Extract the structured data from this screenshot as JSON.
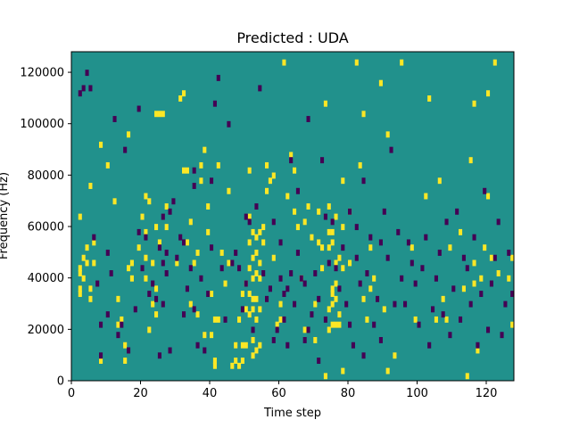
{
  "chart_data": {
    "type": "heatmap",
    "title": "Predicted : UDA",
    "xlabel": "Time step",
    "ylabel": "Frequency (Hz)",
    "xlim": [
      0,
      128
    ],
    "ylim": [
      0,
      128000
    ],
    "x_ticks": [
      0,
      20,
      40,
      60,
      80,
      100,
      120
    ],
    "y_ticks": [
      0,
      20000,
      40000,
      60000,
      80000,
      100000,
      120000
    ],
    "n_time_steps": 128,
    "n_freq_bins": 128,
    "colormap": "viridis",
    "value_levels": {
      "low": 0,
      "mid": 1,
      "high": 2
    },
    "colors": {
      "low": "#440154",
      "mid": "#21918c",
      "high": "#fde725"
    },
    "background_value": 1,
    "cells_high": [
      [
        2,
        36
      ],
      [
        2,
        34
      ],
      [
        2,
        44
      ],
      [
        2,
        42
      ],
      [
        2,
        64
      ],
      [
        3,
        48
      ],
      [
        3,
        40
      ],
      [
        4,
        52
      ],
      [
        4,
        46
      ],
      [
        5,
        36
      ],
      [
        5,
        76
      ],
      [
        5,
        32
      ],
      [
        6,
        54
      ],
      [
        6,
        46
      ],
      [
        8,
        92
      ],
      [
        8,
        8
      ],
      [
        10,
        84
      ],
      [
        12,
        70
      ],
      [
        13,
        22
      ],
      [
        13,
        32
      ],
      [
        14,
        24
      ],
      [
        15,
        8
      ],
      [
        15,
        14
      ],
      [
        16,
        44
      ],
      [
        16,
        96
      ],
      [
        17,
        46
      ],
      [
        17,
        40
      ],
      [
        19,
        52
      ],
      [
        20,
        64
      ],
      [
        21,
        72
      ],
      [
        21,
        58
      ],
      [
        21,
        40
      ],
      [
        21,
        48
      ],
      [
        22,
        20
      ],
      [
        22,
        70
      ],
      [
        23,
        30
      ],
      [
        23,
        46
      ],
      [
        24,
        26
      ],
      [
        24,
        36
      ],
      [
        24,
        60
      ],
      [
        24,
        104
      ],
      [
        25,
        104
      ],
      [
        25,
        54
      ],
      [
        26,
        104
      ],
      [
        27,
        60
      ],
      [
        27,
        68
      ],
      [
        30,
        46
      ],
      [
        31,
        110
      ],
      [
        32,
        112
      ],
      [
        32,
        82
      ],
      [
        33,
        82
      ],
      [
        33,
        54
      ],
      [
        34,
        30
      ],
      [
        34,
        62
      ],
      [
        35,
        46
      ],
      [
        36,
        26
      ],
      [
        36,
        50
      ],
      [
        37,
        78
      ],
      [
        37,
        84
      ],
      [
        38,
        90
      ],
      [
        38,
        18
      ],
      [
        39,
        68
      ],
      [
        39,
        58
      ],
      [
        40,
        18
      ],
      [
        40,
        34
      ],
      [
        41,
        8
      ],
      [
        41,
        24
      ],
      [
        41,
        6
      ],
      [
        42,
        24
      ],
      [
        42,
        84
      ],
      [
        43,
        50
      ],
      [
        44,
        38
      ],
      [
        45,
        46
      ],
      [
        45,
        74
      ],
      [
        46,
        6
      ],
      [
        47,
        8
      ],
      [
        47,
        14
      ],
      [
        48,
        6
      ],
      [
        48,
        24
      ],
      [
        49,
        8
      ],
      [
        49,
        14
      ],
      [
        49,
        34
      ],
      [
        50,
        38
      ],
      [
        50,
        14
      ],
      [
        50,
        28
      ],
      [
        51,
        54
      ],
      [
        51,
        44
      ],
      [
        51,
        26
      ],
      [
        51,
        82
      ],
      [
        51,
        64
      ],
      [
        51,
        34
      ],
      [
        52,
        58
      ],
      [
        52,
        48
      ],
      [
        52,
        40
      ],
      [
        52,
        10
      ],
      [
        52,
        32
      ],
      [
        52,
        28
      ],
      [
        52,
        16
      ],
      [
        53,
        56
      ],
      [
        53,
        50
      ],
      [
        53,
        42
      ],
      [
        53,
        32
      ],
      [
        53,
        24
      ],
      [
        53,
        12
      ],
      [
        54,
        58
      ],
      [
        54,
        46
      ],
      [
        54,
        40
      ],
      [
        54,
        14
      ],
      [
        54,
        28
      ],
      [
        55,
        60
      ],
      [
        55,
        54
      ],
      [
        56,
        74
      ],
      [
        56,
        84
      ],
      [
        57,
        78
      ],
      [
        58,
        80
      ],
      [
        58,
        48
      ],
      [
        59,
        22
      ],
      [
        60,
        24
      ],
      [
        60,
        30
      ],
      [
        61,
        124
      ],
      [
        62,
        72
      ],
      [
        63,
        88
      ],
      [
        64,
        82
      ],
      [
        64,
        66
      ],
      [
        65,
        60
      ],
      [
        66,
        40
      ],
      [
        67,
        62
      ],
      [
        67,
        20
      ],
      [
        68,
        68
      ],
      [
        69,
        56
      ],
      [
        70,
        30
      ],
      [
        70,
        16
      ],
      [
        71,
        54
      ],
      [
        71,
        66
      ],
      [
        72,
        44
      ],
      [
        72,
        52
      ],
      [
        73,
        108
      ],
      [
        73,
        2
      ],
      [
        74,
        52
      ],
      [
        74,
        20
      ],
      [
        74,
        58
      ],
      [
        74,
        28
      ],
      [
        74,
        68
      ],
      [
        75,
        54
      ],
      [
        75,
        36
      ],
      [
        75,
        34
      ],
      [
        75,
        30
      ],
      [
        75,
        22
      ],
      [
        75,
        58
      ],
      [
        76,
        64
      ],
      [
        76,
        46
      ],
      [
        76,
        38
      ],
      [
        76,
        32
      ],
      [
        76,
        22
      ],
      [
        77,
        48
      ],
      [
        77,
        26
      ],
      [
        77,
        22
      ],
      [
        78,
        78
      ],
      [
        78,
        60
      ],
      [
        78,
        44
      ],
      [
        78,
        4
      ],
      [
        80,
        46
      ],
      [
        80,
        66
      ],
      [
        82,
        124
      ],
      [
        83,
        84
      ],
      [
        84,
        32
      ],
      [
        84,
        104
      ],
      [
        85,
        24
      ],
      [
        86,
        52
      ],
      [
        86,
        36
      ],
      [
        87,
        40
      ],
      [
        89,
        116
      ],
      [
        90,
        28
      ],
      [
        91,
        96
      ],
      [
        91,
        4
      ],
      [
        93,
        10
      ],
      [
        95,
        124
      ],
      [
        98,
        52
      ],
      [
        99,
        24
      ],
      [
        102,
        72
      ],
      [
        103,
        110
      ],
      [
        105,
        24
      ],
      [
        106,
        78
      ],
      [
        107,
        32
      ],
      [
        108,
        24
      ],
      [
        109,
        52
      ],
      [
        112,
        58
      ],
      [
        113,
        36
      ],
      [
        114,
        2
      ],
      [
        115,
        86
      ],
      [
        116,
        108
      ],
      [
        116,
        38
      ],
      [
        116,
        46
      ],
      [
        117,
        12
      ],
      [
        118,
        40
      ],
      [
        119,
        52
      ],
      [
        120,
        112
      ],
      [
        120,
        72
      ],
      [
        121,
        48
      ],
      [
        122,
        124
      ],
      [
        123,
        42
      ],
      [
        126,
        40
      ],
      [
        127,
        48
      ],
      [
        127,
        22
      ]
    ],
    "cells_low": [
      [
        2,
        112
      ],
      [
        3,
        114
      ],
      [
        4,
        120
      ],
      [
        5,
        114
      ],
      [
        6,
        56
      ],
      [
        7,
        38
      ],
      [
        8,
        22
      ],
      [
        8,
        10
      ],
      [
        10,
        26
      ],
      [
        10,
        50
      ],
      [
        11,
        42
      ],
      [
        12,
        102
      ],
      [
        13,
        18
      ],
      [
        14,
        22
      ],
      [
        15,
        90
      ],
      [
        16,
        12
      ],
      [
        18,
        28
      ],
      [
        19,
        58
      ],
      [
        19,
        106
      ],
      [
        20,
        44
      ],
      [
        21,
        56
      ],
      [
        22,
        34
      ],
      [
        23,
        38
      ],
      [
        24,
        32
      ],
      [
        25,
        10
      ],
      [
        25,
        52
      ],
      [
        26,
        30
      ],
      [
        26,
        46
      ],
      [
        26,
        64
      ],
      [
        27,
        50
      ],
      [
        27,
        42
      ],
      [
        28,
        66
      ],
      [
        28,
        12
      ],
      [
        29,
        70
      ],
      [
        30,
        48
      ],
      [
        31,
        56
      ],
      [
        32,
        26
      ],
      [
        32,
        54
      ],
      [
        33,
        36
      ],
      [
        34,
        44
      ],
      [
        35,
        82
      ],
      [
        35,
        28
      ],
      [
        35,
        76
      ],
      [
        36,
        14
      ],
      [
        37,
        40
      ],
      [
        38,
        12
      ],
      [
        39,
        34
      ],
      [
        40,
        52
      ],
      [
        40,
        78
      ],
      [
        41,
        108
      ],
      [
        42,
        118
      ],
      [
        43,
        44
      ],
      [
        44,
        24
      ],
      [
        45,
        100
      ],
      [
        46,
        46
      ],
      [
        47,
        50
      ],
      [
        48,
        44
      ],
      [
        49,
        28
      ],
      [
        50,
        64
      ],
      [
        50,
        38
      ],
      [
        51,
        62
      ],
      [
        52,
        20
      ],
      [
        53,
        68
      ],
      [
        54,
        114
      ],
      [
        55,
        42
      ],
      [
        56,
        32
      ],
      [
        57,
        36
      ],
      [
        58,
        62
      ],
      [
        58,
        16
      ],
      [
        59,
        20
      ],
      [
        60,
        40
      ],
      [
        60,
        54
      ],
      [
        61,
        34
      ],
      [
        61,
        24
      ],
      [
        62,
        36
      ],
      [
        62,
        14
      ],
      [
        63,
        42
      ],
      [
        63,
        86
      ],
      [
        64,
        30
      ],
      [
        65,
        74
      ],
      [
        65,
        50
      ],
      [
        66,
        40
      ],
      [
        67,
        38
      ],
      [
        67,
        16
      ],
      [
        68,
        20
      ],
      [
        68,
        102
      ],
      [
        69,
        26
      ],
      [
        70,
        42
      ],
      [
        71,
        8
      ],
      [
        71,
        32
      ],
      [
        72,
        86
      ],
      [
        73,
        24
      ],
      [
        73,
        64
      ],
      [
        74,
        46
      ],
      [
        75,
        62
      ],
      [
        76,
        44
      ],
      [
        77,
        36
      ],
      [
        78,
        52
      ],
      [
        79,
        30
      ],
      [
        80,
        22
      ],
      [
        80,
        66
      ],
      [
        81,
        14
      ],
      [
        82,
        48
      ],
      [
        82,
        60
      ],
      [
        83,
        38
      ],
      [
        84,
        10
      ],
      [
        84,
        78
      ],
      [
        85,
        42
      ],
      [
        86,
        56
      ],
      [
        87,
        22
      ],
      [
        88,
        32
      ],
      [
        89,
        54
      ],
      [
        89,
        16
      ],
      [
        90,
        66
      ],
      [
        91,
        48
      ],
      [
        92,
        90
      ],
      [
        93,
        30
      ],
      [
        94,
        58
      ],
      [
        95,
        40
      ],
      [
        96,
        30
      ],
      [
        97,
        54
      ],
      [
        98,
        46
      ],
      [
        99,
        38
      ],
      [
        100,
        22
      ],
      [
        101,
        44
      ],
      [
        102,
        56
      ],
      [
        103,
        14
      ],
      [
        104,
        28
      ],
      [
        105,
        40
      ],
      [
        106,
        50
      ],
      [
        107,
        26
      ],
      [
        108,
        62
      ],
      [
        109,
        18
      ],
      [
        110,
        36
      ],
      [
        111,
        66
      ],
      [
        112,
        24
      ],
      [
        113,
        48
      ],
      [
        114,
        44
      ],
      [
        115,
        30
      ],
      [
        116,
        56
      ],
      [
        117,
        14
      ],
      [
        118,
        34
      ],
      [
        119,
        74
      ],
      [
        120,
        20
      ],
      [
        121,
        38
      ],
      [
        122,
        48
      ],
      [
        123,
        62
      ],
      [
        124,
        18
      ],
      [
        125,
        30
      ],
      [
        126,
        50
      ],
      [
        127,
        34
      ]
    ]
  }
}
